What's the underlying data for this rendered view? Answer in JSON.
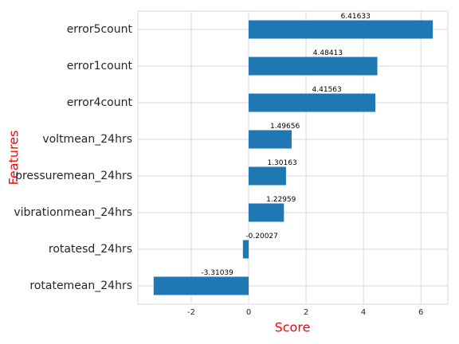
{
  "chart_data": {
    "type": "barh",
    "xlabel": "Score",
    "ylabel": "Features",
    "categories": [
      "error5count",
      "error1count",
      "error4count",
      "voltmean_24hrs",
      "pressuremean_24hrs",
      "vibrationmean_24hrs",
      "rotatesd_24hrs",
      "rotatemean_24hrs"
    ],
    "values": [
      6.41633,
      4.48413,
      4.41563,
      1.49656,
      1.30163,
      1.22959,
      -0.20027,
      -3.31039
    ],
    "color": "#1f77b4",
    "xlim": [
      -3.86,
      6.94
    ],
    "xticks": [
      -2,
      0,
      2,
      4,
      6
    ],
    "grid": true
  }
}
